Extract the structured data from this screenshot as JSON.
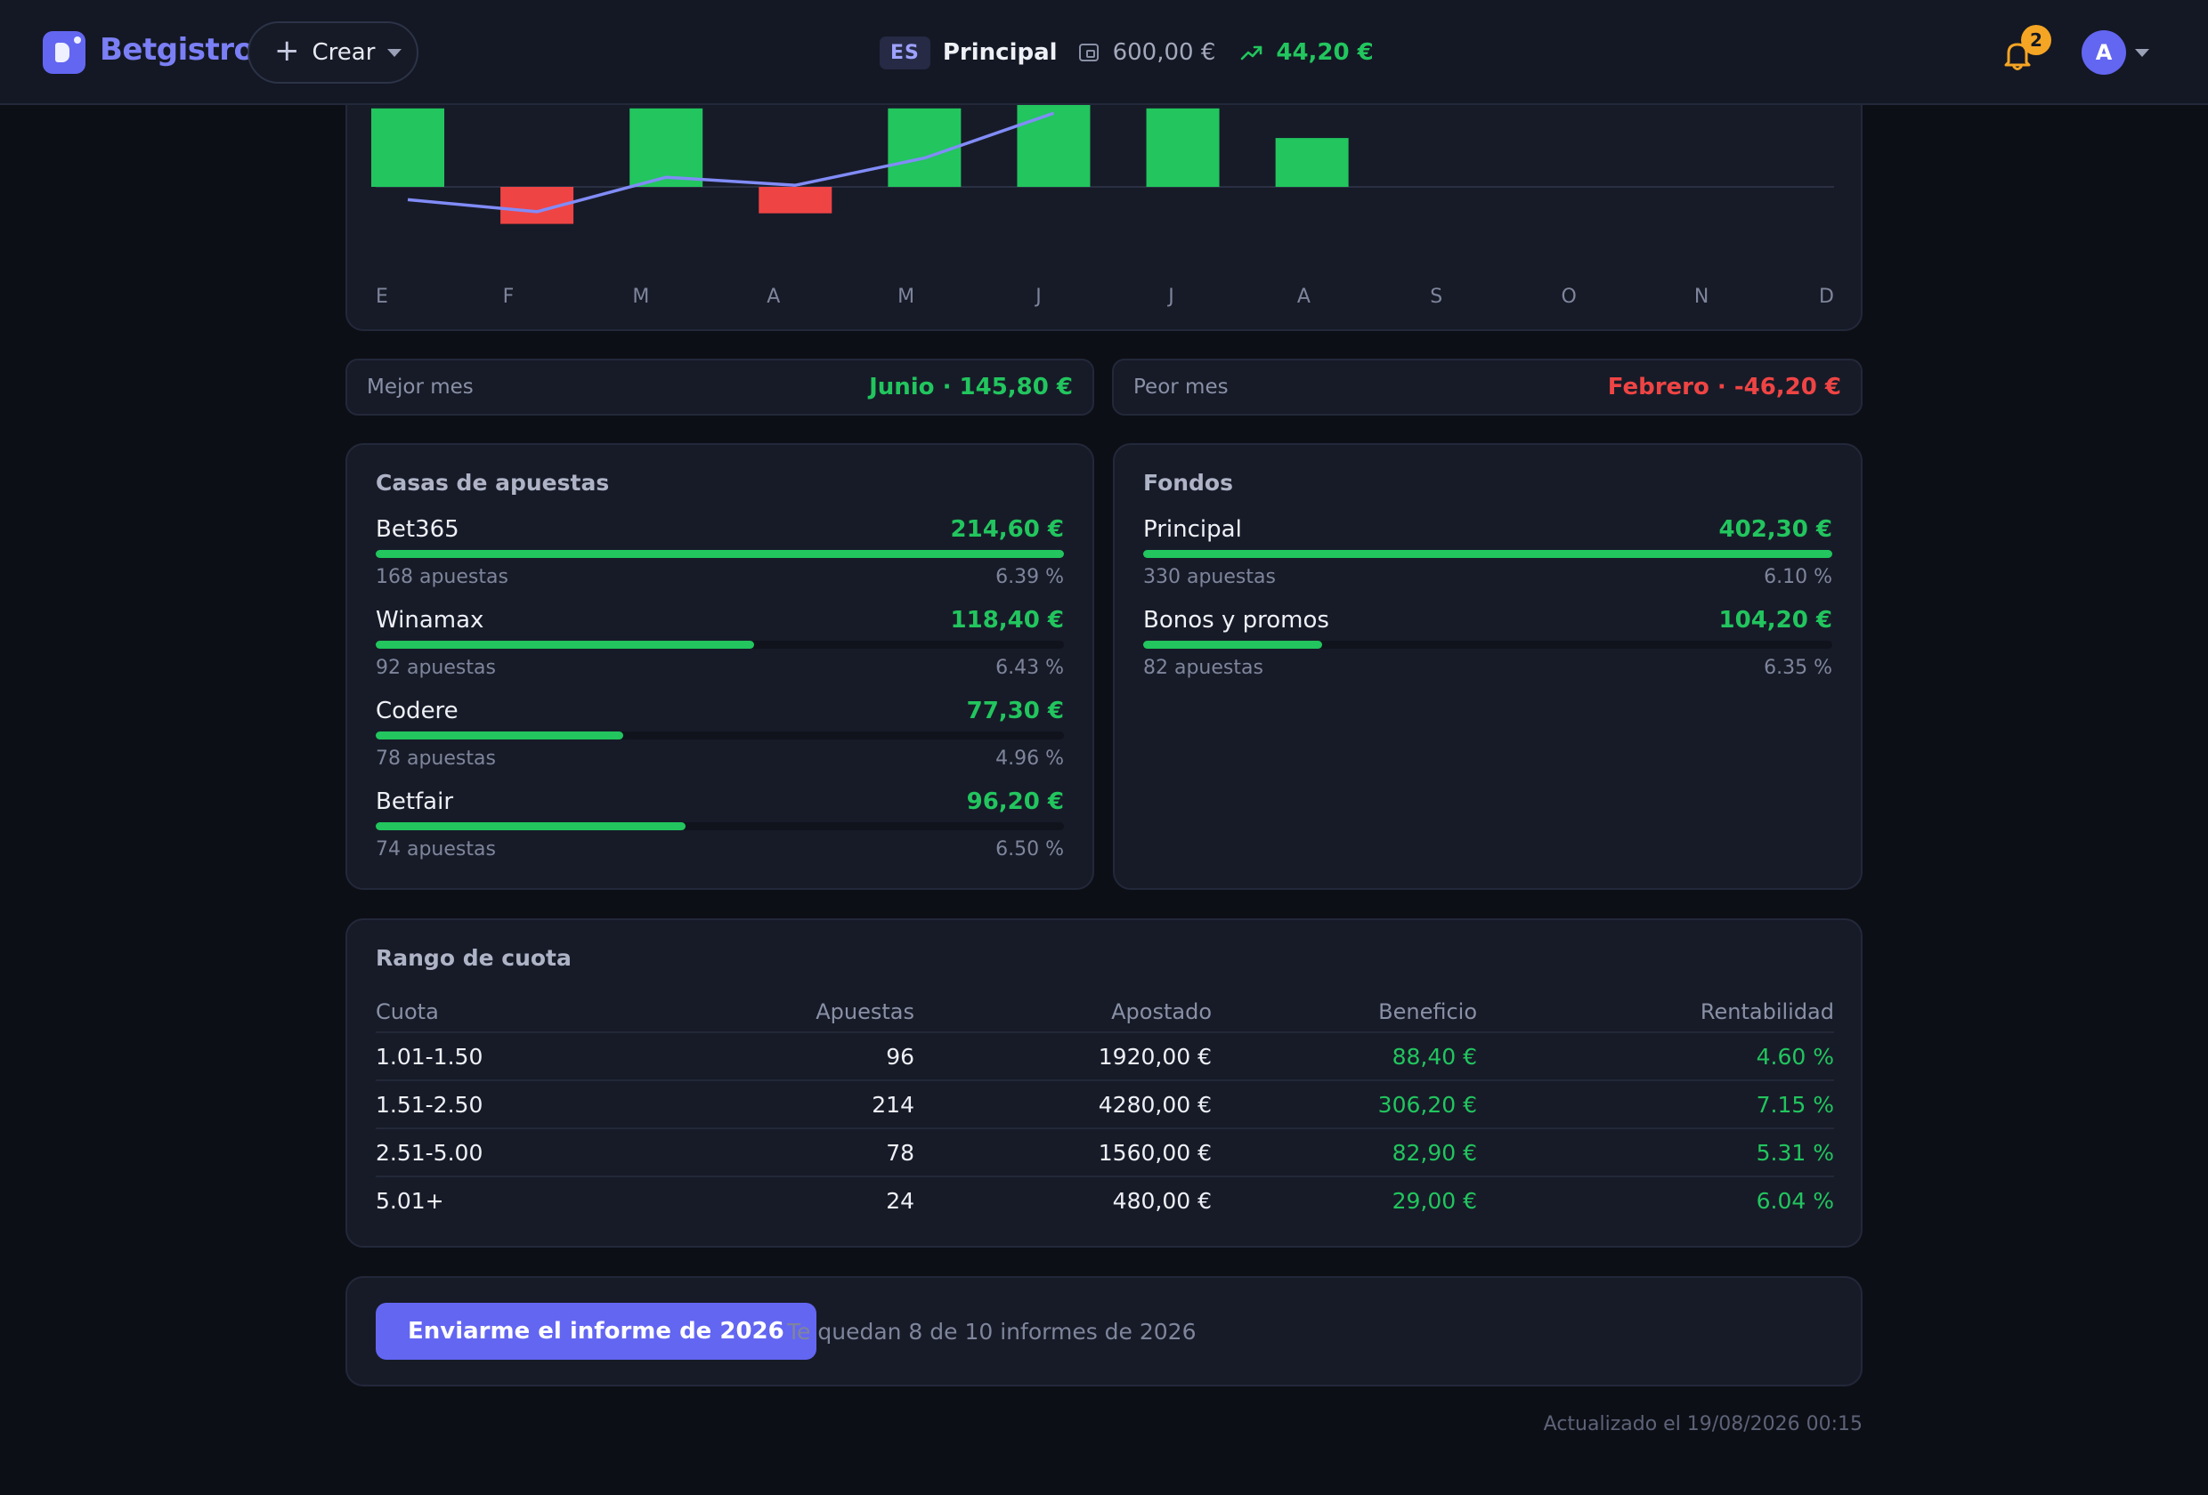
{
  "header": {
    "brand": "Betgistro",
    "create_label": "Crear",
    "lang": "ES",
    "account": "Principal",
    "balance": "600,00 €",
    "profit": "44,20 €",
    "notifications": "2",
    "avatar_initial": "A"
  },
  "colors": {
    "accent": "#6366f1",
    "positive": "#22c55e",
    "negative": "#ef4444",
    "line": "#818cf8"
  },
  "chart_data": {
    "type": "bar",
    "categories": [
      "E",
      "F",
      "M",
      "A",
      "M",
      "J",
      "J",
      "A",
      "S",
      "O",
      "N",
      "D"
    ],
    "series": [
      {
        "type": "bar",
        "values": [
          98,
          -46.2,
          98,
          -33,
          98,
          145.8,
          98,
          61,
          null,
          null,
          null,
          null
        ]
      },
      {
        "type": "line",
        "values": [
          -16,
          -31,
          12,
          2,
          36,
          92,
          null,
          null,
          null,
          null,
          null,
          null
        ]
      }
    ]
  },
  "stats": {
    "best_label": "Mejor mes",
    "best_value": "Junio · 145,80 €",
    "worst_label": "Peor mes",
    "worst_value": "Febrero · -46,20 €"
  },
  "bookmakers": {
    "title": "Casas de apuestas",
    "items": [
      {
        "name": "Bet365",
        "amount": "214,60 €",
        "bets": "168 apuestas",
        "pct": "6.39 %",
        "share": 1.0
      },
      {
        "name": "Winamax",
        "amount": "118,40 €",
        "bets": "92 apuestas",
        "pct": "6.43 %",
        "share": 0.55
      },
      {
        "name": "Codere",
        "amount": "77,30 €",
        "bets": "78 apuestas",
        "pct": "4.96 %",
        "share": 0.36
      },
      {
        "name": "Betfair",
        "amount": "96,20 €",
        "bets": "74 apuestas",
        "pct": "6.50 %",
        "share": 0.45
      }
    ]
  },
  "funds": {
    "title": "Fondos",
    "items": [
      {
        "name": "Principal",
        "amount": "402,30 €",
        "bets": "330 apuestas",
        "pct": "6.10 %",
        "share": 1.0
      },
      {
        "name": "Bonos y promos",
        "amount": "104,20 €",
        "bets": "82 apuestas",
        "pct": "6.35 %",
        "share": 0.26
      }
    ]
  },
  "odds_table": {
    "title": "Rango de cuota",
    "columns": [
      "Cuota",
      "Apuestas",
      "Apostado",
      "Beneficio",
      "Rentabilidad"
    ],
    "rows": [
      [
        "1.01-1.50",
        "96",
        "1920,00 €",
        "88,40 €",
        "4.60 %"
      ],
      [
        "1.51-2.50",
        "214",
        "4280,00 €",
        "306,20 €",
        "7.15 %"
      ],
      [
        "2.51-5.00",
        "78",
        "1560,00 €",
        "82,90 €",
        "5.31 %"
      ],
      [
        "5.01+",
        "24",
        "480,00 €",
        "29,00 €",
        "6.04 %"
      ]
    ]
  },
  "report": {
    "button": "Enviarme el informe de 2026",
    "note": "Te quedan 8 de 10 informes de 2026"
  },
  "updated": "Actualizado el 19/08/2026 00:15"
}
